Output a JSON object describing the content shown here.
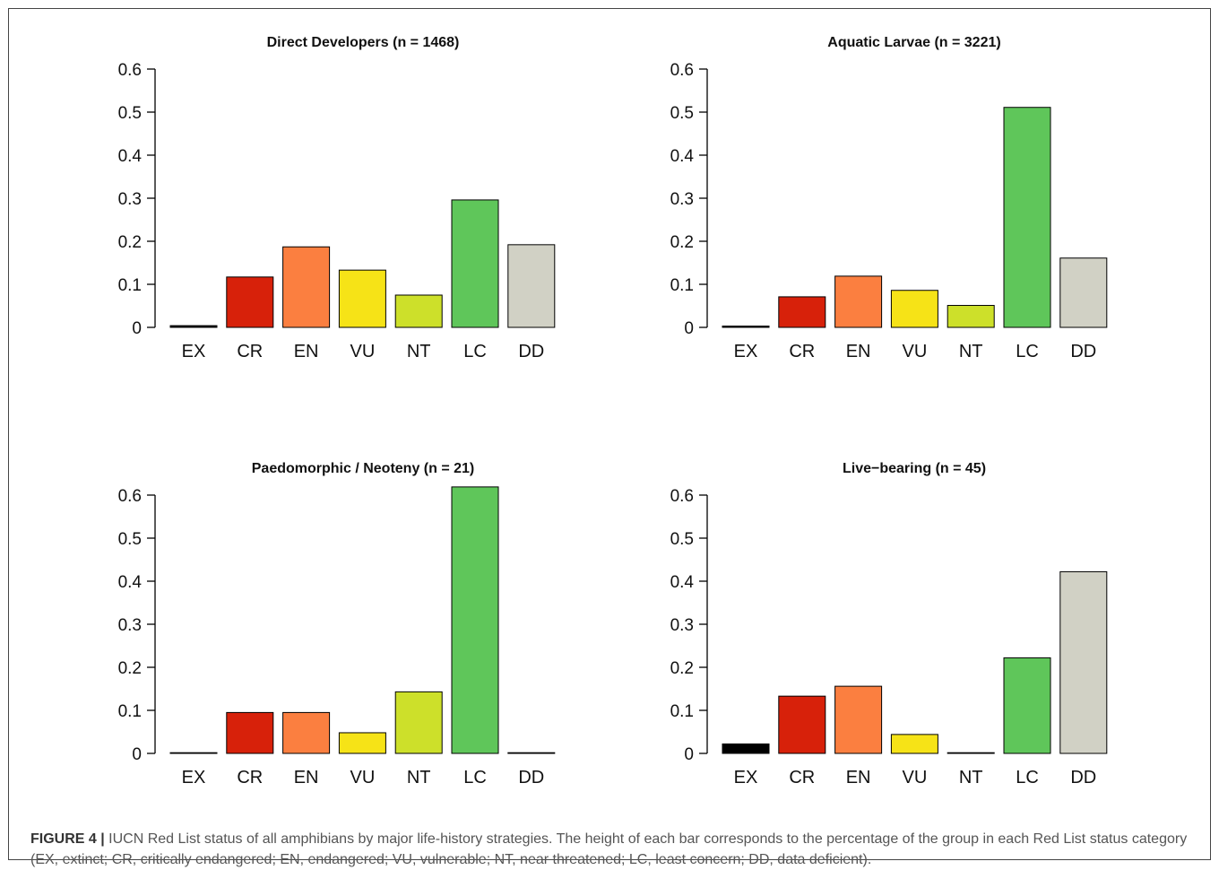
{
  "figure": {
    "label": "FIGURE 4 |",
    "caption": "IUCN Red List status of all amphibians by major life-history strategies. The height of each bar corresponds to the percentage of the group in each Red List status category (EX, extinct; CR, critically endangered; EN, endangered; VU, vulnerable; NT, near threatened; LC, least concern; DD, data deficient)."
  },
  "colors": {
    "EX": "#000000",
    "CR": "#d7210a",
    "EN": "#fb7f40",
    "VU": "#f6e317",
    "NT": "#cde02a",
    "LC": "#5fc65a",
    "DD": "#d1d1c5"
  },
  "chart_data": [
    {
      "type": "bar",
      "title": "Direct Developers (n = 1468)",
      "categories": [
        "EX",
        "CR",
        "EN",
        "VU",
        "NT",
        "LC",
        "DD"
      ],
      "values": [
        0.004,
        0.117,
        0.187,
        0.133,
        0.075,
        0.296,
        0.192
      ],
      "yticks": [
        "0",
        "0.1",
        "0.2",
        "0.3",
        "0.4",
        "0.5",
        "0.6"
      ],
      "ylim": [
        0,
        0.6
      ]
    },
    {
      "type": "bar",
      "title": "Aquatic Larvae (n = 3221)",
      "categories": [
        "EX",
        "CR",
        "EN",
        "VU",
        "NT",
        "LC",
        "DD"
      ],
      "values": [
        0.003,
        0.071,
        0.119,
        0.086,
        0.051,
        0.511,
        0.161
      ],
      "yticks": [
        "0",
        "0.1",
        "0.2",
        "0.3",
        "0.4",
        "0.5",
        "0.6"
      ],
      "ylim": [
        0,
        0.6
      ]
    },
    {
      "type": "bar",
      "title": "Paedomorphic / Neoteny (n = 21)",
      "categories": [
        "EX",
        "CR",
        "EN",
        "VU",
        "NT",
        "LC",
        "DD"
      ],
      "values": [
        0,
        0.095,
        0.095,
        0.048,
        0.143,
        0.619,
        0
      ],
      "yticks": [
        "0",
        "0.1",
        "0.2",
        "0.3",
        "0.4",
        "0.5",
        "0.6"
      ],
      "ylim": [
        0,
        0.6
      ]
    },
    {
      "type": "bar",
      "title": "Live−bearing (n = 45)",
      "categories": [
        "EX",
        "CR",
        "EN",
        "VU",
        "NT",
        "LC",
        "DD"
      ],
      "values": [
        0.022,
        0.133,
        0.156,
        0.044,
        0,
        0.222,
        0.422
      ],
      "yticks": [
        "0",
        "0.1",
        "0.2",
        "0.3",
        "0.4",
        "0.5",
        "0.6"
      ],
      "ylim": [
        0,
        0.6
      ]
    }
  ]
}
